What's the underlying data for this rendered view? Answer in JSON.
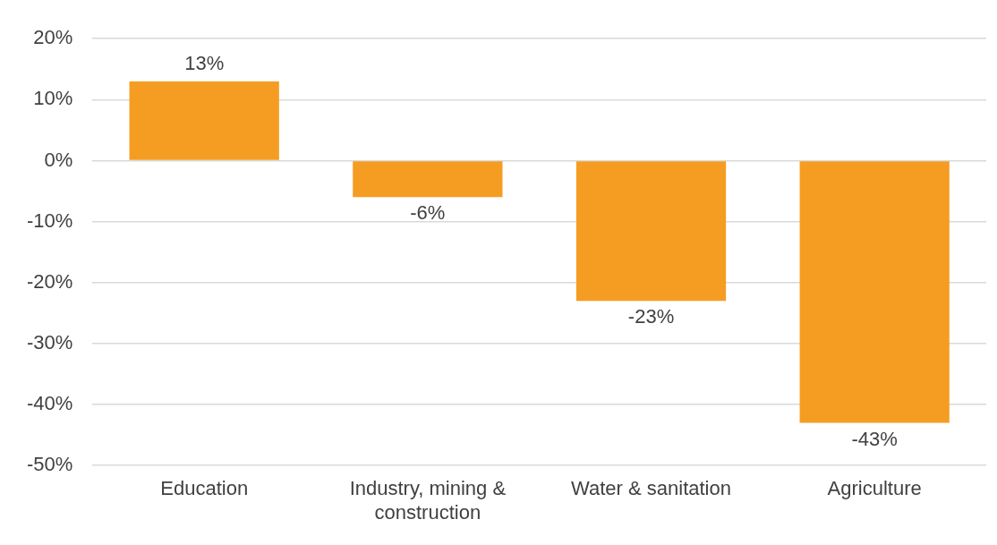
{
  "chart_data": {
    "type": "bar",
    "categories": [
      "Education",
      "Industry, mining & construction",
      "Water & sanitation",
      "Agriculture"
    ],
    "values": [
      13,
      -6,
      -23,
      -43
    ],
    "value_labels": [
      "13%",
      "-6%",
      "-23%",
      "-43%"
    ],
    "color": "#f59d23",
    "ylim": [
      -50,
      20
    ],
    "yticks": [
      {
        "value": 20,
        "label": "20%"
      },
      {
        "value": 10,
        "label": "10%"
      },
      {
        "value": 0,
        "label": "0%"
      },
      {
        "value": -10,
        "label": "-10%"
      },
      {
        "value": -20,
        "label": "-20%"
      },
      {
        "value": -30,
        "label": "-30%"
      },
      {
        "value": -40,
        "label": "-40%"
      },
      {
        "value": -50,
        "label": "-50%"
      }
    ],
    "grid": "y",
    "legend": false
  }
}
